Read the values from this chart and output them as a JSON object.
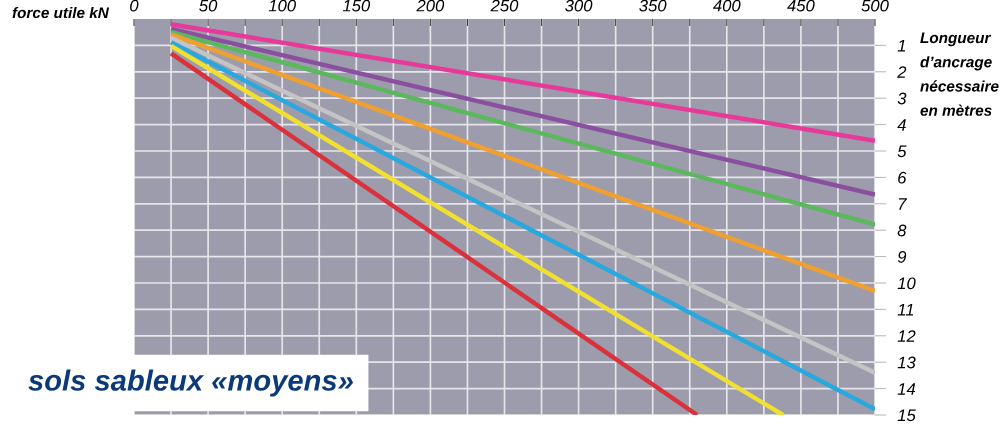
{
  "chart_data": {
    "type": "line",
    "xlabel": "force utile kN",
    "ylabel": "Longueur\nd’ancrage\nnécessaire\nen mètres",
    "annotations": [
      "sols sableux «moyens»"
    ],
    "series": [
      {
        "color": "#e8399a",
        "x": [
          25,
          500
        ],
        "values": [
          0.2,
          4.61
        ]
      },
      {
        "color": "#8a4f9e",
        "x": [
          25,
          500
        ],
        "values": [
          0.38,
          6.65
        ]
      },
      {
        "color": "#5cb85c",
        "x": [
          25,
          500
        ],
        "values": [
          0.49,
          7.79
        ]
      },
      {
        "color": "#f0a030",
        "x": [
          25,
          500
        ],
        "values": [
          0.58,
          10.3
        ]
      },
      {
        "color": "#c4c4c4",
        "x": [
          25,
          500
        ],
        "values": [
          0.71,
          13.4
        ]
      },
      {
        "color": "#29a8e0",
        "x": [
          25,
          500
        ],
        "values": [
          0.88,
          14.78
        ]
      },
      {
        "color": "#f2e030",
        "x": [
          25,
          438
        ],
        "values": [
          1.02,
          15
        ]
      },
      {
        "color": "#d9323c",
        "x": [
          25,
          380
        ],
        "values": [
          1.3,
          15
        ]
      }
    ],
    "xlim": [
      0,
      500
    ],
    "xticks": [
      0,
      {
        "value": 25,
        "label": null
      },
      50,
      {
        "value": 75,
        "label": null
      },
      100,
      {
        "value": 125,
        "label": null
      },
      150,
      {
        "value": 175,
        "label": null
      },
      200,
      {
        "value": 225,
        "label": null
      },
      250,
      {
        "value": 275,
        "label": null
      },
      300,
      {
        "value": 325,
        "label": null
      },
      350,
      {
        "value": 375,
        "label": null
      },
      400,
      {
        "value": 425,
        "label": null
      },
      450,
      {
        "value": 475,
        "label": null
      },
      500
    ],
    "ylim": [
      15,
      0
    ],
    "yticks": [
      1,
      2,
      3,
      4,
      5,
      6,
      7,
      8,
      9,
      10,
      11,
      12,
      13,
      14,
      15
    ],
    "grid": true,
    "marker": "none",
    "line_style": "solid"
  }
}
